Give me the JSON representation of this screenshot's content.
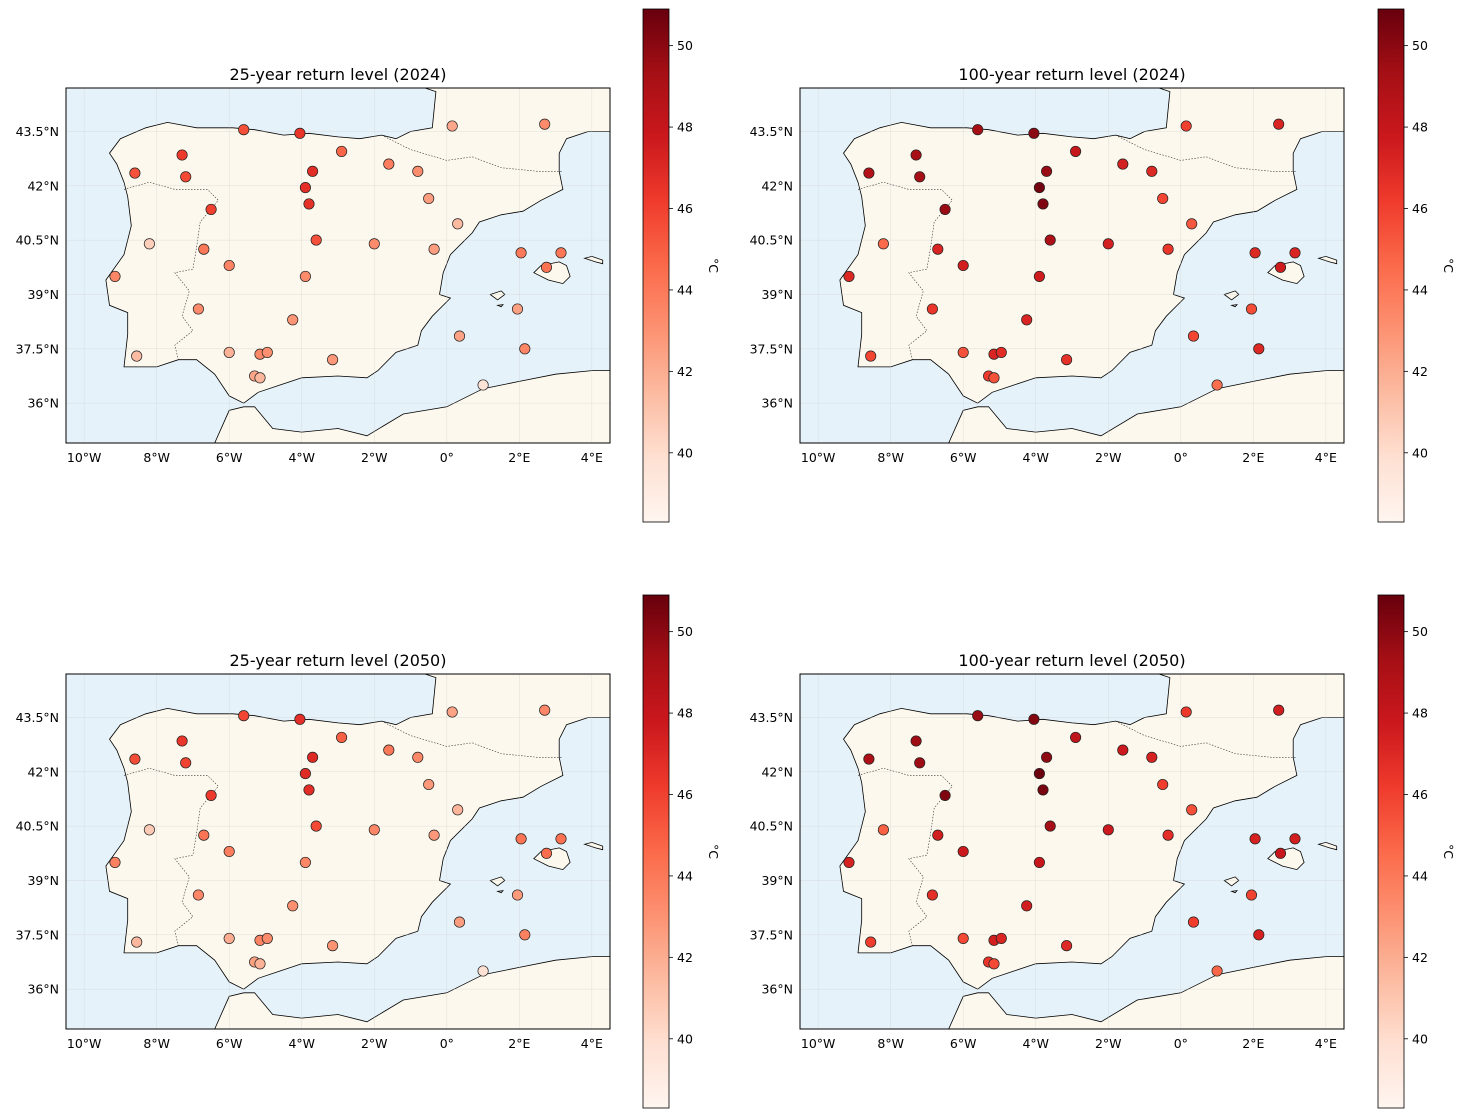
{
  "colorbar": {
    "label": "°C",
    "ticks": [
      40,
      42,
      44,
      46,
      48,
      50
    ],
    "range": [
      38.3,
      50.9
    ],
    "colormap": "Reds"
  },
  "colors": {
    "sea": "#e6f2fa",
    "land": "#fcf8ed",
    "coast": "#000000"
  },
  "axes": {
    "xticks": [
      "10°W",
      "8°W",
      "6°W",
      "4°W",
      "2°W",
      "0°",
      "2°E",
      "4°E"
    ],
    "yticks": [
      "43.5°N",
      "42°N",
      "40.5°N",
      "39°N",
      "37.5°N",
      "36°N"
    ]
  },
  "chart_data": [
    {
      "type": "scatter",
      "title": "25-year return level (2024)",
      "xlim": [
        -10.5,
        4.5
      ],
      "ylim": [
        34.9,
        44.7
      ],
      "points": [
        {
          "lon": -5.6,
          "lat": 43.55,
          "v": 45.5
        },
        {
          "lon": -4.05,
          "lat": 43.45,
          "v": 46.5
        },
        {
          "lon": 0.15,
          "lat": 43.65,
          "v": 42.2
        },
        {
          "lon": 2.7,
          "lat": 43.7,
          "v": 43.3
        },
        {
          "lon": -7.3,
          "lat": 42.85,
          "v": 46.2
        },
        {
          "lon": -8.6,
          "lat": 42.35,
          "v": 45.4
        },
        {
          "lon": -7.2,
          "lat": 42.25,
          "v": 45.7
        },
        {
          "lon": -3.7,
          "lat": 42.4,
          "v": 46.8
        },
        {
          "lon": -2.9,
          "lat": 42.95,
          "v": 44.7
        },
        {
          "lon": -1.6,
          "lat": 42.6,
          "v": 43.8
        },
        {
          "lon": -0.8,
          "lat": 42.4,
          "v": 43.2
        },
        {
          "lon": -3.9,
          "lat": 41.95,
          "v": 46.7
        },
        {
          "lon": -3.8,
          "lat": 41.5,
          "v": 46.6
        },
        {
          "lon": -6.5,
          "lat": 41.35,
          "v": 46.0
        },
        {
          "lon": -0.5,
          "lat": 41.65,
          "v": 42.6
        },
        {
          "lon": -8.2,
          "lat": 40.4,
          "v": 40.6
        },
        {
          "lon": -6.7,
          "lat": 40.25,
          "v": 44.0
        },
        {
          "lon": -3.6,
          "lat": 40.5,
          "v": 45.5
        },
        {
          "lon": -2.0,
          "lat": 40.4,
          "v": 43.3
        },
        {
          "lon": -0.35,
          "lat": 40.25,
          "v": 42.6
        },
        {
          "lon": 0.3,
          "lat": 40.95,
          "v": 41.5
        },
        {
          "lon": -6.0,
          "lat": 39.8,
          "v": 43.6
        },
        {
          "lon": -3.9,
          "lat": 39.5,
          "v": 43.3
        },
        {
          "lon": -9.15,
          "lat": 39.5,
          "v": 43.5
        },
        {
          "lon": 2.05,
          "lat": 40.15,
          "v": 44.0
        },
        {
          "lon": 3.15,
          "lat": 40.15,
          "v": 44.1
        },
        {
          "lon": 2.75,
          "lat": 39.75,
          "v": 44.3
        },
        {
          "lon": -6.85,
          "lat": 38.6,
          "v": 43.3
        },
        {
          "lon": -4.25,
          "lat": 38.3,
          "v": 42.9
        },
        {
          "lon": 1.95,
          "lat": 38.6,
          "v": 42.5
        },
        {
          "lon": -8.55,
          "lat": 37.3,
          "v": 41.4
        },
        {
          "lon": -6.0,
          "lat": 37.4,
          "v": 41.8
        },
        {
          "lon": -5.15,
          "lat": 37.35,
          "v": 43.4
        },
        {
          "lon": -4.95,
          "lat": 37.4,
          "v": 43.1
        },
        {
          "lon": -3.15,
          "lat": 37.2,
          "v": 42.8
        },
        {
          "lon": 0.35,
          "lat": 37.85,
          "v": 42.4
        },
        {
          "lon": 2.15,
          "lat": 37.5,
          "v": 43.5
        },
        {
          "lon": -5.3,
          "lat": 36.75,
          "v": 42.3
        },
        {
          "lon": -5.15,
          "lat": 36.7,
          "v": 41.6
        },
        {
          "lon": 1.0,
          "lat": 36.5,
          "v": 39.6
        }
      ]
    },
    {
      "type": "scatter",
      "title": "100-year return level (2024)",
      "xlim": [
        -10.5,
        4.5
      ],
      "ylim": [
        34.9,
        44.7
      ],
      "points": [
        {
          "lon": -5.6,
          "lat": 43.55,
          "v": 49.3
        },
        {
          "lon": -4.05,
          "lat": 43.45,
          "v": 50.0
        },
        {
          "lon": 0.15,
          "lat": 43.65,
          "v": 46.0
        },
        {
          "lon": 2.7,
          "lat": 43.7,
          "v": 47.2
        },
        {
          "lon": -7.3,
          "lat": 42.85,
          "v": 49.2
        },
        {
          "lon": -8.6,
          "lat": 42.35,
          "v": 48.8
        },
        {
          "lon": -7.2,
          "lat": 42.25,
          "v": 49.3
        },
        {
          "lon": -3.7,
          "lat": 42.4,
          "v": 49.6
        },
        {
          "lon": -2.9,
          "lat": 42.95,
          "v": 48.0
        },
        {
          "lon": -1.6,
          "lat": 42.6,
          "v": 47.4
        },
        {
          "lon": -0.8,
          "lat": 42.4,
          "v": 47.0
        },
        {
          "lon": -3.9,
          "lat": 41.95,
          "v": 50.6
        },
        {
          "lon": -3.8,
          "lat": 41.5,
          "v": 50.3
        },
        {
          "lon": -6.5,
          "lat": 41.35,
          "v": 49.6
        },
        {
          "lon": -0.5,
          "lat": 41.65,
          "v": 45.8
        },
        {
          "lon": -8.2,
          "lat": 40.4,
          "v": 44.6
        },
        {
          "lon": -6.7,
          "lat": 40.25,
          "v": 47.2
        },
        {
          "lon": -3.6,
          "lat": 40.5,
          "v": 49.0
        },
        {
          "lon": -2.0,
          "lat": 40.4,
          "v": 47.4
        },
        {
          "lon": -0.35,
          "lat": 40.25,
          "v": 46.4
        },
        {
          "lon": 0.3,
          "lat": 40.95,
          "v": 45.2
        },
        {
          "lon": -6.0,
          "lat": 39.8,
          "v": 47.5
        },
        {
          "lon": -3.9,
          "lat": 39.5,
          "v": 47.6
        },
        {
          "lon": -9.15,
          "lat": 39.5,
          "v": 47.0
        },
        {
          "lon": 2.05,
          "lat": 40.15,
          "v": 47.0
        },
        {
          "lon": 3.15,
          "lat": 40.15,
          "v": 47.2
        },
        {
          "lon": 2.75,
          "lat": 39.75,
          "v": 47.6
        },
        {
          "lon": -6.85,
          "lat": 38.6,
          "v": 46.4
        },
        {
          "lon": -4.25,
          "lat": 38.3,
          "v": 47.2
        },
        {
          "lon": 1.95,
          "lat": 38.6,
          "v": 45.6
        },
        {
          "lon": -8.55,
          "lat": 37.3,
          "v": 45.8
        },
        {
          "lon": -6.0,
          "lat": 37.4,
          "v": 45.4
        },
        {
          "lon": -5.15,
          "lat": 37.35,
          "v": 47.2
        },
        {
          "lon": -4.95,
          "lat": 37.4,
          "v": 46.8
        },
        {
          "lon": -3.15,
          "lat": 37.2,
          "v": 46.6
        },
        {
          "lon": 0.35,
          "lat": 37.85,
          "v": 45.8
        },
        {
          "lon": 2.15,
          "lat": 37.5,
          "v": 47.0
        },
        {
          "lon": -5.3,
          "lat": 36.75,
          "v": 46.2
        },
        {
          "lon": -5.15,
          "lat": 36.7,
          "v": 45.4
        },
        {
          "lon": 1.0,
          "lat": 36.5,
          "v": 44.4
        }
      ]
    },
    {
      "type": "scatter",
      "title": "25-year return level (2050)",
      "xlim": [
        -10.5,
        4.5
      ],
      "ylim": [
        34.9,
        44.7
      ],
      "points": [
        {
          "lon": -5.6,
          "lat": 43.55,
          "v": 45.8
        },
        {
          "lon": -4.05,
          "lat": 43.45,
          "v": 46.7
        },
        {
          "lon": 0.15,
          "lat": 43.65,
          "v": 42.4
        },
        {
          "lon": 2.7,
          "lat": 43.7,
          "v": 43.5
        },
        {
          "lon": -7.3,
          "lat": 42.85,
          "v": 46.4
        },
        {
          "lon": -8.6,
          "lat": 42.35,
          "v": 45.6
        },
        {
          "lon": -7.2,
          "lat": 42.25,
          "v": 45.9
        },
        {
          "lon": -3.7,
          "lat": 42.4,
          "v": 47.0
        },
        {
          "lon": -2.9,
          "lat": 42.95,
          "v": 44.9
        },
        {
          "lon": -1.6,
          "lat": 42.6,
          "v": 44.0
        },
        {
          "lon": -0.8,
          "lat": 42.4,
          "v": 43.4
        },
        {
          "lon": -3.9,
          "lat": 41.95,
          "v": 46.9
        },
        {
          "lon": -3.8,
          "lat": 41.5,
          "v": 46.8
        },
        {
          "lon": -6.5,
          "lat": 41.35,
          "v": 46.2
        },
        {
          "lon": -0.5,
          "lat": 41.65,
          "v": 42.8
        },
        {
          "lon": -8.2,
          "lat": 40.4,
          "v": 40.8
        },
        {
          "lon": -6.7,
          "lat": 40.25,
          "v": 44.2
        },
        {
          "lon": -3.6,
          "lat": 40.5,
          "v": 45.7
        },
        {
          "lon": -2.0,
          "lat": 40.4,
          "v": 43.5
        },
        {
          "lon": -0.35,
          "lat": 40.25,
          "v": 42.8
        },
        {
          "lon": 0.3,
          "lat": 40.95,
          "v": 41.7
        },
        {
          "lon": -6.0,
          "lat": 39.8,
          "v": 43.8
        },
        {
          "lon": -3.9,
          "lat": 39.5,
          "v": 43.5
        },
        {
          "lon": -9.15,
          "lat": 39.5,
          "v": 43.7
        },
        {
          "lon": 2.05,
          "lat": 40.15,
          "v": 44.2
        },
        {
          "lon": 3.15,
          "lat": 40.15,
          "v": 44.3
        },
        {
          "lon": 2.75,
          "lat": 39.75,
          "v": 44.5
        },
        {
          "lon": -6.85,
          "lat": 38.6,
          "v": 43.5
        },
        {
          "lon": -4.25,
          "lat": 38.3,
          "v": 43.1
        },
        {
          "lon": 1.95,
          "lat": 38.6,
          "v": 42.7
        },
        {
          "lon": -8.55,
          "lat": 37.3,
          "v": 41.6
        },
        {
          "lon": -6.0,
          "lat": 37.4,
          "v": 42.0
        },
        {
          "lon": -5.15,
          "lat": 37.35,
          "v": 43.6
        },
        {
          "lon": -4.95,
          "lat": 37.4,
          "v": 43.3
        },
        {
          "lon": -3.15,
          "lat": 37.2,
          "v": 43.0
        },
        {
          "lon": 0.35,
          "lat": 37.85,
          "v": 42.6
        },
        {
          "lon": 2.15,
          "lat": 37.5,
          "v": 43.7
        },
        {
          "lon": -5.3,
          "lat": 36.75,
          "v": 42.5
        },
        {
          "lon": -5.15,
          "lat": 36.7,
          "v": 41.8
        },
        {
          "lon": 1.0,
          "lat": 36.5,
          "v": 39.8
        }
      ]
    },
    {
      "type": "scatter",
      "title": "100-year return level (2050)",
      "xlim": [
        -10.5,
        4.5
      ],
      "ylim": [
        34.9,
        44.7
      ],
      "points": [
        {
          "lon": -5.6,
          "lat": 43.55,
          "v": 49.6
        },
        {
          "lon": -4.05,
          "lat": 43.45,
          "v": 50.2
        },
        {
          "lon": 0.15,
          "lat": 43.65,
          "v": 46.3
        },
        {
          "lon": 2.7,
          "lat": 43.7,
          "v": 47.5
        },
        {
          "lon": -7.3,
          "lat": 42.85,
          "v": 49.5
        },
        {
          "lon": -8.6,
          "lat": 42.35,
          "v": 49.0
        },
        {
          "lon": -7.2,
          "lat": 42.25,
          "v": 49.5
        },
        {
          "lon": -3.7,
          "lat": 42.4,
          "v": 49.9
        },
        {
          "lon": -2.9,
          "lat": 42.95,
          "v": 48.3
        },
        {
          "lon": -1.6,
          "lat": 42.6,
          "v": 47.7
        },
        {
          "lon": -0.8,
          "lat": 42.4,
          "v": 47.3
        },
        {
          "lon": -3.9,
          "lat": 41.95,
          "v": 50.8
        },
        {
          "lon": -3.8,
          "lat": 41.5,
          "v": 50.5
        },
        {
          "lon": -6.5,
          "lat": 41.35,
          "v": 50.3
        },
        {
          "lon": -0.5,
          "lat": 41.65,
          "v": 46.1
        },
        {
          "lon": -8.2,
          "lat": 40.4,
          "v": 44.9
        },
        {
          "lon": -6.7,
          "lat": 40.25,
          "v": 47.5
        },
        {
          "lon": -3.6,
          "lat": 40.5,
          "v": 49.3
        },
        {
          "lon": -2.0,
          "lat": 40.4,
          "v": 47.7
        },
        {
          "lon": -0.35,
          "lat": 40.25,
          "v": 46.7
        },
        {
          "lon": 0.3,
          "lat": 40.95,
          "v": 45.5
        },
        {
          "lon": -6.0,
          "lat": 39.8,
          "v": 47.8
        },
        {
          "lon": -3.9,
          "lat": 39.5,
          "v": 47.9
        },
        {
          "lon": -9.15,
          "lat": 39.5,
          "v": 47.3
        },
        {
          "lon": 2.05,
          "lat": 40.15,
          "v": 47.3
        },
        {
          "lon": 3.15,
          "lat": 40.15,
          "v": 47.5
        },
        {
          "lon": 2.75,
          "lat": 39.75,
          "v": 47.9
        },
        {
          "lon": -6.85,
          "lat": 38.6,
          "v": 46.7
        },
        {
          "lon": -4.25,
          "lat": 38.3,
          "v": 47.5
        },
        {
          "lon": 1.95,
          "lat": 38.6,
          "v": 45.9
        },
        {
          "lon": -8.55,
          "lat": 37.3,
          "v": 46.1
        },
        {
          "lon": -6.0,
          "lat": 37.4,
          "v": 45.7
        },
        {
          "lon": -5.15,
          "lat": 37.35,
          "v": 47.5
        },
        {
          "lon": -4.95,
          "lat": 37.4,
          "v": 47.1
        },
        {
          "lon": -3.15,
          "lat": 37.2,
          "v": 46.9
        },
        {
          "lon": 0.35,
          "lat": 37.85,
          "v": 46.1
        },
        {
          "lon": 2.15,
          "lat": 37.5,
          "v": 47.3
        },
        {
          "lon": -5.3,
          "lat": 36.75,
          "v": 46.5
        },
        {
          "lon": -5.15,
          "lat": 36.7,
          "v": 45.7
        },
        {
          "lon": 1.0,
          "lat": 36.5,
          "v": 44.7
        }
      ]
    }
  ]
}
